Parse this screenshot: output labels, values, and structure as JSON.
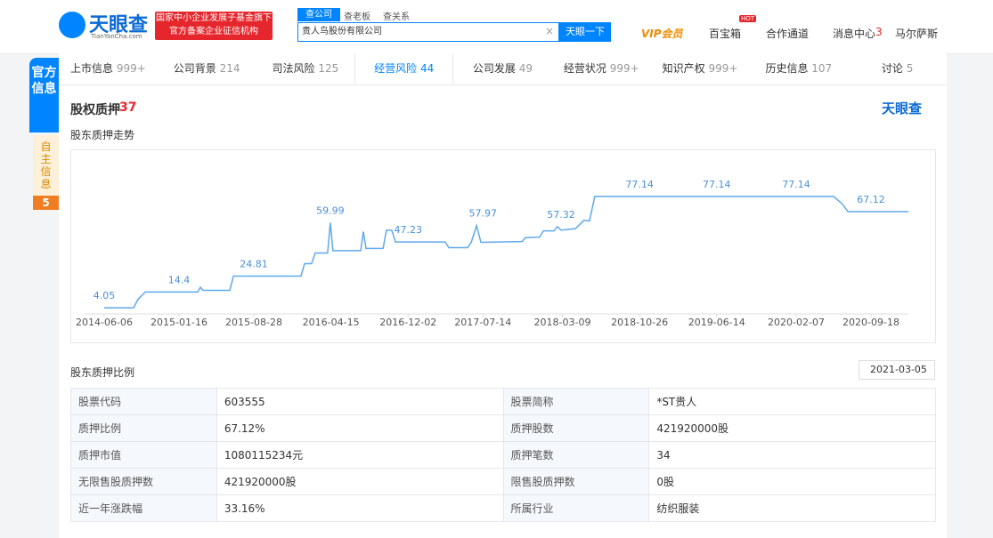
{
  "header": {
    "logo": "天眼查",
    "logo_sub": "TianYanCha.com",
    "badge": [
      "国家中小企业发展子基金旗下",
      "官方备案企业征信机构"
    ],
    "search_tabs": [
      "查公司",
      "查老板",
      "查关系"
    ],
    "search_value": "贵人鸟股份有限公司",
    "search_button": "天眼一下",
    "nav": [
      "VIP会员",
      "百宝箱",
      "合作通道",
      "消息中心",
      "马尔萨斯"
    ],
    "hot": "HOT",
    "message_count": 3
  },
  "sidebar": {
    "items": [
      "官方信息",
      "自主信息"
    ],
    "badge": 5
  },
  "tabs": [
    {
      "label": "上市信息",
      "count": "999+"
    },
    {
      "label": "公司背景",
      "count": 214
    },
    {
      "label": "司法风险",
      "count": 125
    },
    {
      "label": "经营风险",
      "count": 44
    },
    {
      "label": "公司发展",
      "count": 49
    },
    {
      "label": "经营状况",
      "count": "999+"
    },
    {
      "label": "知识产权",
      "count": "999+"
    },
    {
      "label": "历史信息",
      "count": 107
    },
    {
      "label": "讨论",
      "count": 5
    }
  ],
  "section": {
    "title": "股权质押",
    "count": 37,
    "brand": "天眼查",
    "chart_title": "股东质押走势",
    "table_title": "股东质押比例",
    "date": "2021-03-05"
  },
  "chart_data": {
    "type": "line",
    "color": "#5fa9ec",
    "x": [
      "2014-06-06",
      "2014-09-02",
      "2014-09-15",
      "2014-10-07",
      "2015-03-13",
      "2015-03-21",
      "2015-03-29",
      "2015-06-17",
      "2015-06-28",
      "2016-01-16",
      "2016-01-27",
      "2016-02-17",
      "2016-02-28",
      "2016-04-05",
      "2016-04-13",
      "2016-04-21",
      "2016-07-13",
      "2016-07-21",
      "2016-07-29",
      "2016-09-18",
      "2016-09-28",
      "2016-10-14",
      "2016-10-25",
      "2017-03-23",
      "2017-04-03",
      "2017-05-29",
      "2017-06-09",
      "2017-06-25",
      "2017-07-08",
      "2017-11-08",
      "2017-11-18",
      "2017-12-31",
      "2018-01-11",
      "2018-02-12",
      "2018-02-22",
      "2018-03-05",
      "2018-04-17",
      "2018-05-13",
      "2018-05-29",
      "2018-06-14",
      "2020-05-29",
      "2020-06-25",
      "2020-07-11",
      "2021-01-08"
    ],
    "values": [
      4.05,
      4.05,
      9.5,
      14.4,
      14.4,
      17.5,
      15.5,
      15.5,
      24.81,
      24.81,
      33,
      33,
      40,
      40,
      59.99,
      41.5,
      41.5,
      54,
      43,
      43,
      55,
      55,
      47.23,
      47.23,
      43.5,
      43.5,
      47,
      57.97,
      47,
      47.5,
      50,
      50.5,
      54.5,
      54.5,
      57.32,
      55,
      56,
      61.5,
      61,
      77.14,
      77.14,
      72,
      67.12,
      67.12
    ],
    "annotations": [
      {
        "x": "2014-06-06",
        "value": 4.05
      },
      {
        "x": "2015-01-16",
        "value": 14.4
      },
      {
        "x": "2015-08-28",
        "value": 24.81
      },
      {
        "x": "2016-04-13",
        "value": 59.99
      },
      {
        "x": "2016-12-02",
        "value": 47.23
      },
      {
        "x": "2017-07-14",
        "value": 57.97
      },
      {
        "x": "2018-03-05",
        "value": 57.32
      },
      {
        "x": "2018-10-26",
        "value": 77.14
      },
      {
        "x": "2019-06-14",
        "value": 77.14
      },
      {
        "x": "2020-02-07",
        "value": 77.14
      },
      {
        "x": "2020-09-18",
        "value": 67.12
      }
    ],
    "xlim": [
      "2014-06-06",
      "2021-01-08"
    ],
    "ylim": [
      0,
      80
    ],
    "xticks": [
      "2014-06-06",
      "2015-01-16",
      "2015-08-28",
      "2016-04-15",
      "2016-12-02",
      "2017-07-14",
      "2018-03-09",
      "2018-10-26",
      "2019-06-14",
      "2020-02-07",
      "2020-09-18"
    ]
  },
  "table": {
    "rows": [
      [
        "股票代码",
        "603555",
        "股票简称",
        "*ST贵人"
      ],
      [
        "质押比例",
        "67.12%",
        "质押股数",
        "421920000股"
      ],
      [
        "质押市值",
        "1080115234元",
        "质押笔数",
        "34"
      ],
      [
        "无限售股质押数",
        "421920000股",
        "限售股质押数",
        "0股"
      ],
      [
        "近一年涨跌幅",
        "33.16%",
        "所属行业",
        "纺织服装"
      ]
    ]
  }
}
